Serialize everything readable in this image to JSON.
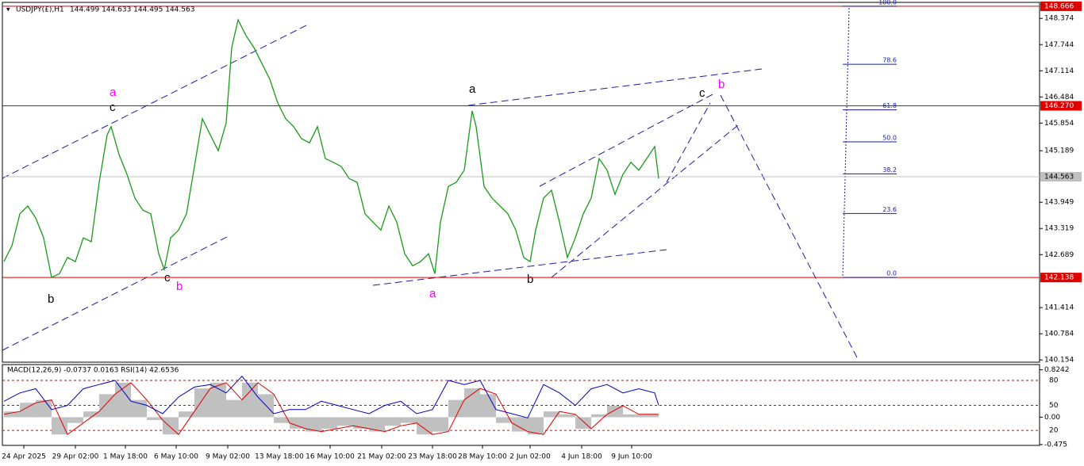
{
  "chart_data": {
    "type": "line",
    "title": "USDJPY(£),H1",
    "ohlc_text": "144.499 144.633 144.495 144.563",
    "x": [
      0,
      10,
      20,
      30,
      40,
      50,
      60,
      70,
      80,
      90,
      100,
      110,
      120,
      130,
      135,
      145,
      155,
      165,
      175,
      185,
      195,
      202,
      210,
      220,
      230,
      240,
      250,
      260,
      270,
      280,
      287,
      295,
      305,
      315,
      325,
      335,
      345,
      355,
      365,
      375,
      385,
      395,
      405,
      415,
      425,
      435,
      445,
      455,
      465,
      475,
      485,
      495,
      505,
      515,
      525,
      535,
      543,
      550,
      560,
      570,
      580,
      590,
      595,
      605,
      615,
      625,
      635,
      645,
      655,
      663,
      670,
      680,
      690,
      700,
      710,
      720,
      730,
      740,
      750,
      760,
      770,
      780,
      790,
      800,
      810,
      820,
      825
    ],
    "values": [
      142.52,
      142.9,
      143.67,
      143.86,
      143.57,
      143.09,
      142.14,
      142.23,
      142.62,
      142.52,
      143.09,
      143.0,
      144.43,
      145.57,
      145.77,
      145.1,
      144.62,
      144.05,
      143.76,
      143.67,
      142.71,
      142.33,
      143.09,
      143.28,
      143.67,
      144.81,
      145.96,
      145.57,
      145.19,
      145.86,
      147.67,
      148.34,
      147.96,
      147.67,
      147.29,
      146.91,
      146.34,
      145.96,
      145.77,
      145.48,
      145.38,
      145.77,
      145.0,
      144.91,
      144.81,
      144.52,
      144.43,
      143.67,
      143.47,
      143.28,
      143.86,
      143.47,
      142.71,
      142.42,
      142.52,
      142.71,
      142.23,
      143.47,
      144.33,
      144.43,
      144.72,
      146.15,
      145.77,
      144.33,
      144.05,
      143.86,
      143.67,
      143.28,
      142.62,
      142.52,
      143.28,
      144.05,
      144.24,
      143.47,
      142.62,
      143.09,
      143.67,
      144.05,
      145.0,
      144.72,
      144.14,
      144.62,
      144.91,
      144.72,
      145.0,
      145.29,
      144.52
    ],
    "color": "#1a9a1a",
    "xlim": [
      0,
      1305
    ],
    "ylim": [
      140.1,
      148.76
    ],
    "xticks": [
      {
        "value": 25,
        "label": "24 Apr 2025"
      },
      {
        "value": 90,
        "label": "29 Apr 02:00"
      },
      {
        "value": 153,
        "label": "1 May 18:00"
      },
      {
        "value": 217,
        "label": "6 May 10:00"
      },
      {
        "value": 282,
        "label": "9 May 02:00"
      },
      {
        "value": 347,
        "label": "13 May 18:00"
      },
      {
        "value": 411,
        "label": "16 May 10:00"
      },
      {
        "value": 476,
        "label": "21 May 02:00"
      },
      {
        "value": 540,
        "label": "23 May 18:00"
      },
      {
        "value": 603,
        "label": "28 May 10:00"
      },
      {
        "value": 663,
        "label": "2 Jun 02:00"
      },
      {
        "value": 728,
        "label": "4 Jun 18:00"
      },
      {
        "value": 791,
        "label": "9 Jun 10:00"
      }
    ],
    "yticks": [
      148.374,
      147.744,
      147.114,
      146.484,
      145.854,
      145.189,
      143.949,
      143.319,
      142.689,
      141.414,
      140.784,
      140.154
    ],
    "current_price": 144.563,
    "hlines": [
      148.666,
      {
        "value": 146.27,
        "label": "146.270"
      },
      142.138
    ],
    "hline_color": "#e00000",
    "fib_levels": [
      {
        "value": 100,
        "label": "100.0"
      },
      78.6,
      61.8,
      {
        "value": 50,
        "label": "50.0"
      },
      38.2,
      23.6,
      {
        "value": 0,
        "label": "0.0"
      }
    ],
    "indicator": {
      "title": "MACD(12,26,9) -0.0737 0.0163  RSI(14) 42.6536",
      "x": [
        0,
        20,
        40,
        60,
        80,
        100,
        120,
        140,
        160,
        180,
        200,
        220,
        240,
        260,
        280,
        300,
        320,
        340,
        360,
        380,
        400,
        420,
        440,
        460,
        480,
        500,
        520,
        540,
        560,
        580,
        600,
        620,
        640,
        660,
        680,
        700,
        720,
        740,
        760,
        780,
        800,
        820,
        825
      ],
      "macd": [
        0.1,
        0.25,
        0.3,
        -0.3,
        -0.1,
        0.1,
        0.4,
        0.6,
        0.3,
        -0.05,
        -0.3,
        0.1,
        0.5,
        0.6,
        0.3,
        0.6,
        0.4,
        -0.1,
        -0.2,
        -0.25,
        -0.2,
        -0.15,
        -0.2,
        -0.25,
        -0.15,
        -0.1,
        -0.3,
        -0.25,
        0.3,
        0.5,
        0.4,
        -0.1,
        -0.25,
        -0.3,
        0.1,
        0.05,
        -0.2,
        0.05,
        0.2,
        0.05,
        0.05,
        0.05,
        0.0
      ],
      "signal": [
        0.05,
        0.1,
        0.25,
        0.3,
        -0.3,
        -0.1,
        0.1,
        0.4,
        0.6,
        0.3,
        -0.05,
        -0.3,
        0.1,
        0.5,
        0.6,
        0.3,
        0.6,
        0.4,
        -0.1,
        -0.2,
        -0.25,
        -0.2,
        -0.15,
        -0.2,
        -0.25,
        -0.15,
        -0.1,
        -0.3,
        -0.25,
        0.3,
        0.5,
        0.4,
        -0.1,
        -0.25,
        -0.3,
        0.1,
        0.05,
        -0.2,
        0.05,
        0.2,
        0.05,
        0.05,
        0.05
      ],
      "rsi": [
        55,
        65,
        70,
        45,
        50,
        70,
        75,
        80,
        55,
        50,
        40,
        60,
        72,
        75,
        65,
        85,
        60,
        40,
        45,
        45,
        55,
        50,
        45,
        40,
        50,
        55,
        40,
        45,
        80,
        75,
        80,
        45,
        40,
        35,
        75,
        65,
        50,
        70,
        75,
        65,
        70,
        65,
        50
      ],
      "ylim": [
        2,
        99
      ],
      "yticks": [
        80,
        50,
        20
      ],
      "y2lim": [
        -0.49,
        0.915
      ],
      "y2ticks": [
        0.8242,
        {
          "value": 0,
          "label": "0.00"
        },
        -0.475
      ]
    },
    "annotations": [
      "a",
      "c",
      "b",
      "c",
      "b",
      "a",
      "a",
      "b",
      "c",
      "b"
    ]
  }
}
